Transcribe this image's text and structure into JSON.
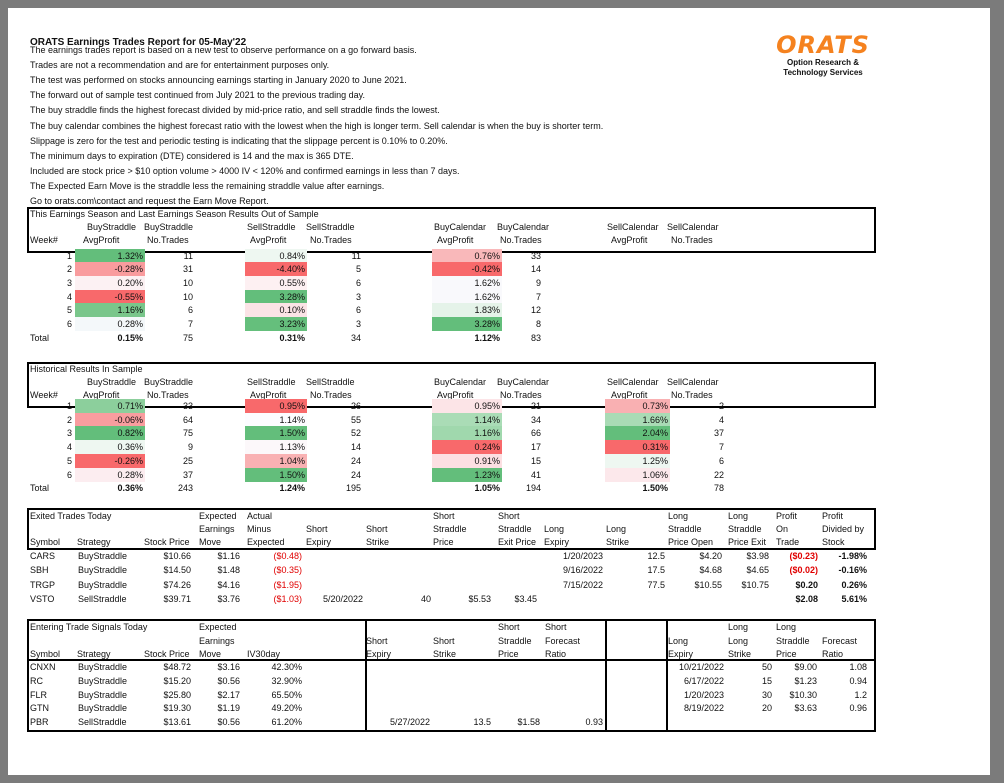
{
  "title": "ORATS Earnings Trades Report for 05-May'22",
  "intro": [
    "The earnings trades report is based on a new test to observe performance on a go forward basis.",
    "Trades are not a recommendation and are for entertainment purposes only.",
    "The test was performed on stocks announcing earnings starting in January 2020 to June 2021.",
    "The forward out of sample test continued from July 2021 to the previous trading day.",
    "The buy straddle finds the highest forecast divided by mid-price ratio, and sell straddle finds the lowest.",
    "The buy calendar combines the highest forecast ratio with the lowest when the high is longer term. Sell calendar is when the buy is shorter term.",
    "Slippage is zero for the test and periodic testing is indicating that the slippage percent is 0.10% to 0.20%.",
    "The minimum days to expiration (DTE) considered is 14 and the max is 365 DTE.",
    "Included are stock price > $10 option volume > 4000 IV < 120% and confirmed earnings in less than 7 days.",
    "The Expected Earn Move is the straddle less the remaining straddle value after earnings.",
    "Go to orats.com\\contact and request the Earn Move Report."
  ],
  "logo": {
    "mark": "ORATS",
    "line1": "Option Research &",
    "line2": "Technology Services",
    "color": "#f5821f"
  },
  "stat_headers": {
    "week": "Week#",
    "total": "Total",
    "cols": [
      [
        "BuyStraddle",
        "AvgProfit"
      ],
      [
        "BuyStraddle",
        "No.Trades"
      ],
      [
        "SellStraddle",
        "AvgProfit"
      ],
      [
        "SellStraddle",
        "No.Trades"
      ],
      [
        "BuyCalendar",
        "AvgProfit"
      ],
      [
        "BuyCalendar",
        "No.Trades"
      ],
      [
        "SellCalendar",
        "AvgProfit"
      ],
      [
        "SellCalendar",
        "No.Trades"
      ]
    ]
  },
  "season": {
    "title": "This Earnings Season and Last Earnings Season Results Out of Sample",
    "rows": [
      {
        "week": "1",
        "v": [
          "1.32%",
          "11",
          "0.84%",
          "11",
          "0.76%",
          "33",
          "",
          ""
        ],
        "c": [
          "#63be7b",
          "",
          "#eef7f1",
          "",
          "#f9b8ba",
          "",
          "",
          ""
        ]
      },
      {
        "week": "2",
        "v": [
          "-0.28%",
          "31",
          "-4.40%",
          "5",
          "-0.42%",
          "14",
          "",
          ""
        ],
        "c": [
          "#f99c9e",
          "",
          "#f8696b",
          "",
          "#f8696b",
          "",
          "",
          ""
        ]
      },
      {
        "week": "3",
        "v": [
          "0.20%",
          "10",
          "0.55%",
          "6",
          "1.62%",
          "9",
          "",
          ""
        ],
        "c": [
          "#fcf1f3",
          "",
          "#fdf0f2",
          "",
          "#f9f9fc",
          "",
          "",
          ""
        ]
      },
      {
        "week": "4",
        "v": [
          "-0.55%",
          "10",
          "3.28%",
          "3",
          "1.62%",
          "7",
          "",
          ""
        ],
        "c": [
          "#f8696b",
          "",
          "#63be7b",
          "",
          "#f9f9fc",
          "",
          "",
          ""
        ]
      },
      {
        "week": "5",
        "v": [
          "1.16%",
          "6",
          "0.10%",
          "6",
          "1.83%",
          "12",
          "",
          ""
        ],
        "c": [
          "#79c68b",
          "",
          "#fbe3e6",
          "",
          "#e5f3e9",
          "",
          "",
          ""
        ]
      },
      {
        "week": "6",
        "v": [
          "0.28%",
          "7",
          "3.23%",
          "3",
          "3.28%",
          "8",
          "",
          ""
        ],
        "c": [
          "#f4f8fa",
          "",
          "#65bf7c",
          "",
          "#63be7b",
          "",
          "",
          ""
        ]
      }
    ],
    "total": [
      "0.15%",
      "75",
      "0.31%",
      "34",
      "1.12%",
      "83",
      "",
      ""
    ]
  },
  "historical": {
    "title": "Historical Results In Sample",
    "rows": [
      {
        "week": "1",
        "v": [
          "0.71%",
          "33",
          "0.95%",
          "26",
          "0.95%",
          "21",
          "0.73%",
          "2"
        ],
        "c": [
          "#8ccf9c",
          "",
          "#f8696b",
          "",
          "#fce4e7",
          "",
          "#f9b0b2",
          ""
        ]
      },
      {
        "week": "2",
        "v": [
          "-0.06%",
          "64",
          "1.14%",
          "55",
          "1.14%",
          "34",
          "1.66%",
          "4"
        ],
        "c": [
          "#f99d9f",
          "",
          "#fcfcff",
          "",
          "#aadcb6",
          "",
          "#a9dbb5",
          ""
        ]
      },
      {
        "week": "3",
        "v": [
          "0.82%",
          "75",
          "1.50%",
          "52",
          "1.16%",
          "66",
          "2.04%",
          "37"
        ],
        "c": [
          "#63be7b",
          "",
          "#63be7b",
          "",
          "#a0d8ad",
          "",
          "#63be7b",
          ""
        ]
      },
      {
        "week": "4",
        "v": [
          "0.36%",
          "9",
          "1.13%",
          "14",
          "0.24%",
          "17",
          "0.31%",
          "7"
        ],
        "c": [
          "#eef7f1",
          "",
          "#fcf8fa",
          "",
          "#f8696b",
          "",
          "#f8696b",
          ""
        ]
      },
      {
        "week": "5",
        "v": [
          "-0.26%",
          "25",
          "1.04%",
          "24",
          "0.91%",
          "15",
          "1.25%",
          "6"
        ],
        "c": [
          "#f8696b",
          "",
          "#f9b1b3",
          "",
          "#fcdfe2",
          "",
          "#eef7f1",
          ""
        ]
      },
      {
        "week": "6",
        "v": [
          "0.28%",
          "37",
          "1.50%",
          "24",
          "1.23%",
          "41",
          "1.06%",
          "22"
        ],
        "c": [
          "#fcedf0",
          "",
          "#63be7b",
          "",
          "#63be7b",
          "",
          "#fce8eb",
          ""
        ]
      }
    ],
    "total": [
      "0.36%",
      "243",
      "1.24%",
      "195",
      "1.05%",
      "194",
      "1.50%",
      "78"
    ]
  },
  "exited": {
    "title": "Exited Trades Today",
    "headers": [
      [
        "Symbol"
      ],
      [
        "Strategy"
      ],
      [
        "Stock Price"
      ],
      [
        "Expected",
        "Earnings",
        "Move"
      ],
      [
        "Actual",
        "Minus",
        "Expected"
      ],
      [
        "Short",
        "Expiry"
      ],
      [
        "Short",
        "Strike"
      ],
      [
        "Short",
        "Straddle",
        "Price"
      ],
      [
        "Short",
        "Straddle",
        "Exit Price"
      ],
      [
        "Long",
        "Expiry"
      ],
      [
        "Long",
        "Strike"
      ],
      [
        "Long",
        "Straddle",
        "Price Open"
      ],
      [
        "Long",
        "Straddle",
        "Price Exit"
      ],
      [
        "Profit",
        "On",
        "Trade"
      ],
      [
        "Profit",
        "Divided by",
        "Stock"
      ]
    ],
    "rows": [
      [
        "CARS",
        "BuyStraddle",
        "$10.66",
        "$1.16",
        "($0.48)",
        "",
        "",
        "",
        "",
        "1/20/2023",
        "12.5",
        "$4.20",
        "$3.98",
        "($0.23)",
        "-1.98%"
      ],
      [
        "SBH",
        "BuyStraddle",
        "$14.50",
        "$1.48",
        "($0.35)",
        "",
        "",
        "",
        "",
        "9/16/2022",
        "17.5",
        "$4.68",
        "$4.65",
        "($0.02)",
        "-0.16%"
      ],
      [
        "TRGP",
        "BuyStraddle",
        "$74.26",
        "$4.16",
        "($1.95)",
        "",
        "",
        "",
        "",
        "7/15/2022",
        "77.5",
        "$10.55",
        "$10.75",
        "$0.20",
        "0.26%"
      ],
      [
        "VSTO",
        "SellStraddle",
        "$39.71",
        "$3.76",
        "($1.03)",
        "5/20/2022",
        "40",
        "$5.53",
        "$3.45",
        "",
        "",
        "",
        "",
        "$2.08",
        "5.61%"
      ]
    ],
    "negative_color": "#e00000"
  },
  "entering": {
    "title": "Entering Trade Signals Today",
    "headers": [
      [
        "Symbol"
      ],
      [
        "Strategy"
      ],
      [
        "Stock Price"
      ],
      [
        "Expected",
        "Earnings",
        "Move"
      ],
      [
        "IV30day"
      ],
      [
        "Short",
        "Expiry"
      ],
      [
        "Short",
        "Strike"
      ],
      [
        "Short",
        "Straddle",
        "Price"
      ],
      [
        "Short",
        "Forecast",
        "Ratio"
      ],
      [
        "Long",
        "Expiry"
      ],
      [
        "Long",
        "Long",
        "Strike"
      ],
      [
        "Long",
        "Straddle",
        "Price"
      ],
      [
        "Forecast",
        "Ratio"
      ]
    ],
    "rows": [
      [
        "CNXN",
        "BuyStraddle",
        "$48.72",
        "$3.16",
        "42.30%",
        "",
        "",
        "",
        "",
        "10/21/2022",
        "50",
        "$9.00",
        "1.08"
      ],
      [
        "RC",
        "BuyStraddle",
        "$15.20",
        "$0.56",
        "32.90%",
        "",
        "",
        "",
        "",
        "6/17/2022",
        "15",
        "$1.23",
        "0.94"
      ],
      [
        "FLR",
        "BuyStraddle",
        "$25.80",
        "$2.17",
        "65.50%",
        "",
        "",
        "",
        "",
        "1/20/2023",
        "30",
        "$10.30",
        "1.2"
      ],
      [
        "GTN",
        "BuyStraddle",
        "$19.30",
        "$1.19",
        "49.20%",
        "",
        "",
        "",
        "",
        "8/19/2022",
        "20",
        "$3.63",
        "0.96"
      ],
      [
        "PBR",
        "SellStraddle",
        "$13.61",
        "$0.56",
        "61.20%",
        "5/27/2022",
        "13.5",
        "$1.58",
        "0.93",
        "",
        "",
        "",
        ""
      ]
    ]
  }
}
